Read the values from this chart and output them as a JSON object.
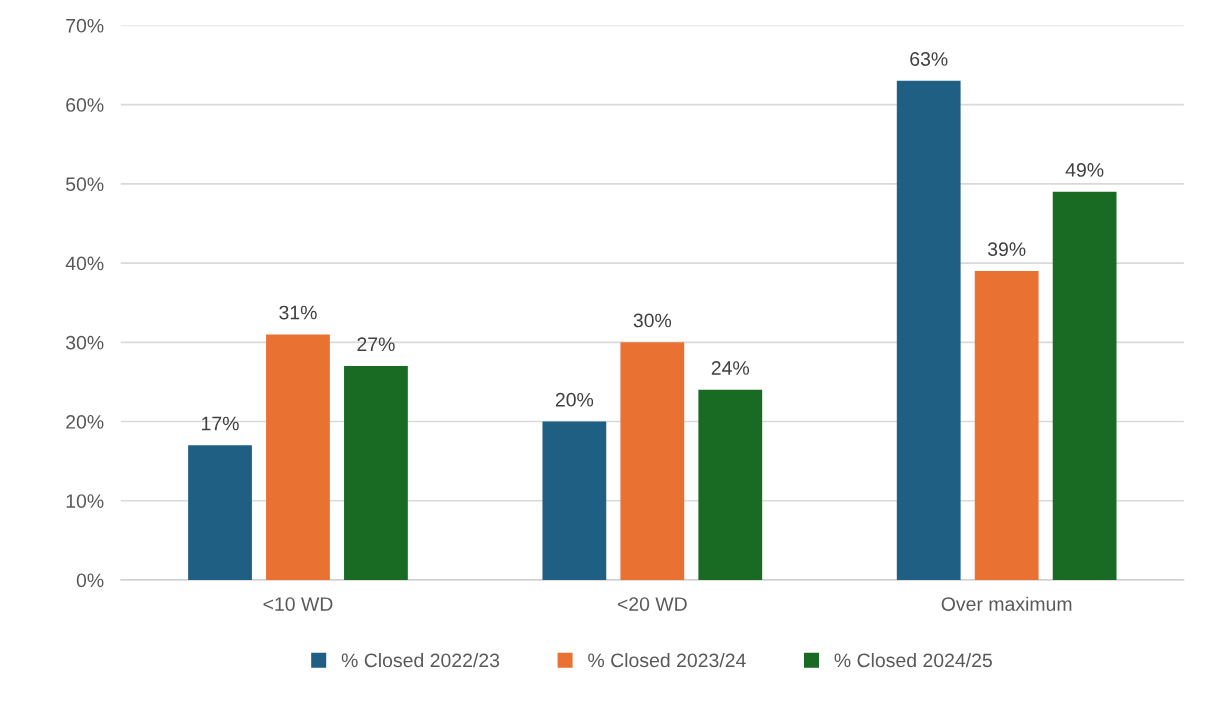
{
  "chart_data": {
    "type": "bar",
    "categories": [
      "<10 WD",
      "<20 WD",
      "Over maximum"
    ],
    "series": [
      {
        "name": "% Closed 2022/23",
        "color": "#1f5f84",
        "values": [
          17,
          20,
          63
        ],
        "value_labels": [
          "17%",
          "20%",
          "63%"
        ]
      },
      {
        "name": "% Closed 2023/24",
        "color": "#e97132",
        "values": [
          31,
          30,
          39
        ],
        "value_labels": [
          "31%",
          "30%",
          "39%"
        ]
      },
      {
        "name": "% Closed 2024/25",
        "color": "#196b24",
        "values": [
          27,
          24,
          49
        ],
        "value_labels": [
          "27%",
          "24%",
          "49%"
        ]
      }
    ],
    "ylim": [
      0,
      70
    ],
    "yticks": [
      {
        "value": 0,
        "label": "0%"
      },
      {
        "value": 10,
        "label": "10%"
      },
      {
        "value": 20,
        "label": "20%"
      },
      {
        "value": 30,
        "label": "30%"
      },
      {
        "value": 40,
        "label": "40%"
      },
      {
        "value": 50,
        "label": "50%"
      },
      {
        "value": 60,
        "label": "60%"
      },
      {
        "value": 70,
        "label": "70%"
      }
    ],
    "grid": "y",
    "legend": "bottom"
  }
}
